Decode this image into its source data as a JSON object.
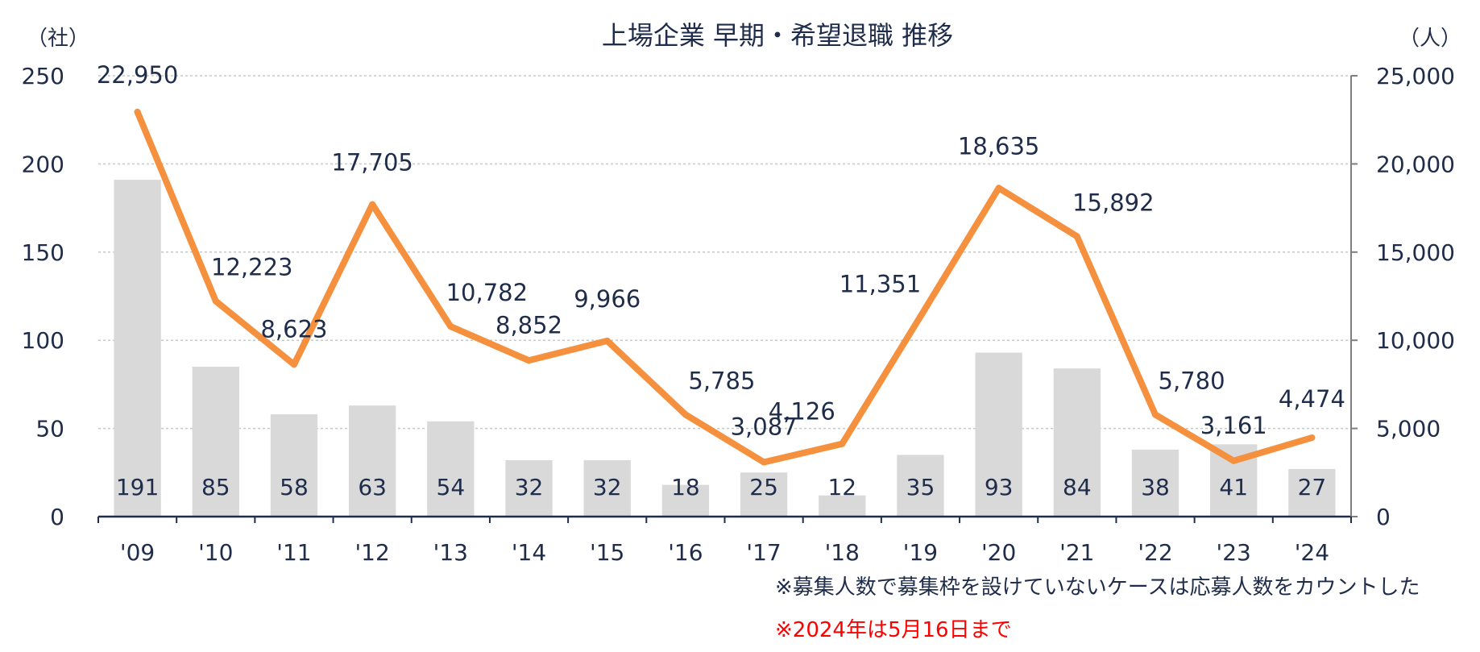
{
  "chart_data": {
    "type": "bar+line",
    "title": "上場企業 早期・希望退職 推移",
    "left_unit": "（社）",
    "right_unit": "（人）",
    "categories": [
      "'09",
      "'10",
      "'11",
      "'12",
      "'13",
      "'14",
      "'15",
      "'16",
      "'17",
      "'18",
      "'19",
      "'20",
      "'21",
      "'22",
      "'23",
      "'24"
    ],
    "series": [
      {
        "kind": "bar",
        "axis": "left",
        "values": [
          191,
          85,
          58,
          63,
          54,
          32,
          32,
          18,
          25,
          12,
          35,
          93,
          84,
          38,
          41,
          27
        ],
        "labels": [
          "191",
          "85",
          "58",
          "63",
          "54",
          "32",
          "32",
          "18",
          "25",
          "12",
          "35",
          "93",
          "84",
          "38",
          "41",
          "27"
        ]
      },
      {
        "kind": "line",
        "axis": "right",
        "values": [
          22950,
          12223,
          8623,
          17705,
          10782,
          8852,
          9966,
          5785,
          3087,
          4126,
          11351,
          18635,
          15892,
          5780,
          3161,
          4474
        ],
        "labels": [
          "22,950",
          "12,223",
          "8,623",
          "17,705",
          "10,782",
          "8,852",
          "9,966",
          "5,785",
          "3,087",
          "4,126",
          "11,351",
          "18,635",
          "15,892",
          "5,780",
          "3,161",
          "4,474"
        ]
      }
    ],
    "left_axis": {
      "min": 0,
      "max": 250,
      "ticks": [
        "0",
        "50",
        "100",
        "150",
        "200",
        "250"
      ]
    },
    "right_axis": {
      "min": 0,
      "max": 25000,
      "ticks": [
        "0",
        "5,000",
        "10,000",
        "15,000",
        "20,000",
        "25,000"
      ]
    },
    "grid": "horizontal dotted",
    "colors": {
      "bar": "#d9d9d9",
      "line": "#f5913e",
      "text": "#1f2d4a",
      "axis": "#7f7f7f",
      "grid": "#c8c8c8",
      "note_red": "#ff0000"
    }
  },
  "notes": {
    "note1": "※募集人数で募集枠を設けていないケースは応募人数をカウントした",
    "note2": "※2024年は5月16日まで"
  }
}
